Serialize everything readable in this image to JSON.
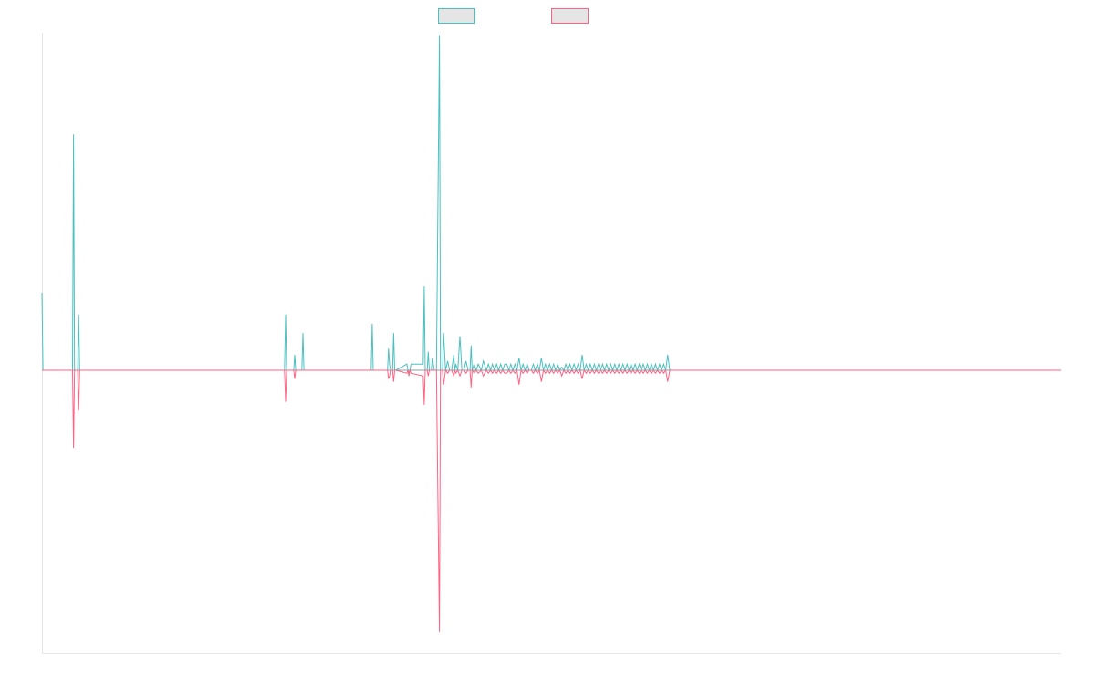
{
  "chart_data": {
    "type": "line",
    "title": "",
    "xlabel": "",
    "ylabel": "",
    "xlim": [
      0,
      1000
    ],
    "ylim": [
      -1,
      1
    ],
    "grid": false,
    "legend": {
      "placement": "top-center",
      "entries": [
        {
          "label": "",
          "color": "#4bc0c0",
          "fill": "#e5e5e5"
        },
        {
          "label": "",
          "color": "#ff6384",
          "fill": "#e5e5e5"
        }
      ]
    },
    "x": [
      0,
      1,
      2,
      30,
      31,
      32,
      35,
      36,
      37,
      38,
      238,
      239,
      240,
      241,
      247,
      248,
      249,
      255,
      256,
      257,
      323,
      324,
      325,
      339,
      340,
      341,
      342,
      343,
      344,
      345,
      346,
      347,
      358,
      359,
      360,
      361,
      362,
      374,
      375,
      376,
      378,
      379,
      380,
      382,
      383,
      385,
      387,
      390,
      391,
      392,
      393,
      394,
      396,
      398,
      400,
      402,
      404,
      405,
      406,
      408,
      410,
      412,
      414,
      416,
      418,
      420,
      421,
      422,
      424,
      426,
      428,
      431,
      433,
      436,
      438,
      440,
      442,
      444,
      446,
      448,
      450,
      452,
      454,
      456,
      458,
      460,
      462,
      464,
      466,
      468,
      470,
      472,
      474,
      476,
      478,
      480,
      482,
      484,
      486,
      488,
      490,
      492,
      494,
      496,
      498,
      500,
      502,
      504,
      506,
      508,
      510,
      512,
      514,
      516,
      518,
      520,
      522,
      524,
      526,
      528,
      530,
      532,
      534,
      536,
      538,
      540,
      542,
      544,
      546,
      548,
      550,
      552,
      554,
      556,
      558,
      560,
      562,
      564,
      566,
      568,
      570,
      572,
      574,
      576,
      578,
      580,
      582,
      584,
      586,
      588,
      590,
      592,
      594,
      596,
      598,
      600,
      602,
      604,
      606,
      608,
      610,
      612,
      614,
      616,
      1000
    ],
    "series": [
      {
        "color": "#4bc0c0",
        "values": [
          0.25,
          0,
          0,
          0,
          0.76,
          0,
          0,
          0.18,
          0,
          0,
          0,
          0.18,
          0,
          0,
          0,
          0.05,
          0,
          0,
          0.12,
          0,
          0,
          0.15,
          0,
          0,
          0.07,
          0.02,
          0,
          0,
          0,
          0.12,
          0,
          0,
          0.02,
          0,
          -0.01,
          0,
          0.02,
          0.02,
          0.27,
          0,
          0,
          0.06,
          0,
          0,
          0.04,
          0,
          0,
          1.08,
          0,
          0,
          0,
          0.12,
          0,
          0.03,
          0,
          0,
          0.05,
          0,
          0.02,
          0,
          0.11,
          0,
          0,
          0.03,
          0,
          0,
          0.08,
          0,
          0.02,
          0,
          0.02,
          0,
          0.03,
          0,
          0.02,
          0,
          0.02,
          0,
          0.02,
          0,
          0.02,
          0,
          0.02,
          0.02,
          0,
          0.02,
          0,
          0.02,
          0,
          0.04,
          0,
          0.02,
          0,
          0.02,
          0,
          0,
          0.02,
          0,
          0.02,
          0,
          0.04,
          0,
          0.02,
          0,
          0.02,
          0,
          0.02,
          0,
          0.02,
          0,
          0.01,
          0,
          0.02,
          0,
          0.02,
          0,
          0.02,
          0,
          0.02,
          0,
          0.05,
          0,
          0.02,
          0,
          0.02,
          0,
          0.02,
          0,
          0.02,
          0,
          0.02,
          0,
          0.02,
          0,
          0.02,
          0,
          0.02,
          0,
          0.02,
          0,
          0.02,
          0,
          0.02,
          0,
          0.02,
          0,
          0.02,
          0,
          0.02,
          0,
          0.02,
          0,
          0.02,
          0,
          0.02,
          0,
          0.02,
          0,
          0.02,
          0,
          0.02,
          0,
          0.05,
          0,
          0
        ]
      },
      {
        "color": "#ff6384",
        "values": [
          0,
          0,
          0,
          0,
          -0.27,
          0,
          0,
          -0.14,
          0,
          0,
          0,
          -0.11,
          0,
          0,
          0,
          -0.03,
          0,
          0,
          0,
          0,
          0,
          0,
          0,
          0,
          -0.03,
          -0.02,
          0,
          0,
          0,
          -0.04,
          0,
          0,
          -0.01,
          0,
          -0.02,
          0,
          -0.01,
          -0.02,
          -0.12,
          0,
          0,
          -0.02,
          0,
          0,
          0,
          0,
          0,
          -0.91,
          0,
          0,
          0,
          -0.05,
          0,
          -0.01,
          0,
          0,
          -0.02,
          0,
          -0.01,
          0,
          -0.02,
          0,
          0,
          -0.01,
          0,
          0,
          -0.06,
          0,
          -0.01,
          0,
          -0.01,
          0,
          -0.02,
          0,
          -0.01,
          0,
          -0.01,
          0,
          -0.01,
          0,
          -0.01,
          0,
          -0.01,
          -0.01,
          0,
          -0.01,
          0,
          -0.01,
          0,
          -0.05,
          0,
          -0.01,
          0,
          -0.01,
          0,
          0,
          -0.01,
          0,
          -0.01,
          0,
          -0.04,
          0,
          -0.01,
          0,
          -0.01,
          0,
          -0.01,
          0,
          -0.01,
          0,
          -0.02,
          0,
          -0.01,
          0,
          -0.01,
          0,
          -0.01,
          0,
          -0.01,
          0,
          -0.03,
          0,
          -0.01,
          0,
          -0.01,
          0,
          -0.01,
          0,
          -0.01,
          0,
          -0.01,
          0,
          -0.01,
          0,
          -0.01,
          0,
          -0.01,
          0,
          -0.01,
          0,
          -0.01,
          0,
          -0.01,
          0,
          -0.01,
          0,
          -0.01,
          0,
          -0.01,
          0,
          -0.01,
          0,
          -0.01,
          0,
          -0.01,
          0,
          -0.01,
          0,
          -0.01,
          0,
          -0.01,
          0,
          -0.04,
          0,
          0
        ]
      }
    ]
  }
}
